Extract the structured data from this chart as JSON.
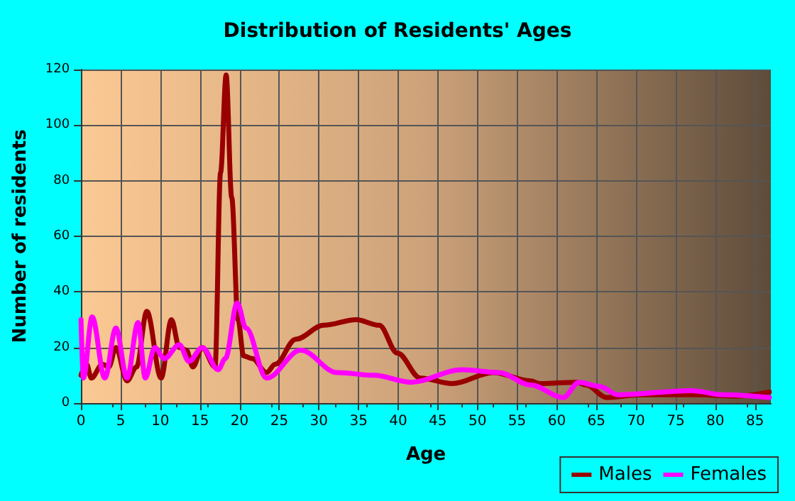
{
  "chart_data": {
    "type": "line",
    "title": "Distribution of Residents' Ages",
    "xlabel": "Age",
    "ylabel": "Number of residents",
    "xlim": [
      0,
      87
    ],
    "xticks": [
      0,
      5,
      10,
      15,
      20,
      25,
      30,
      35,
      40,
      45,
      50,
      55,
      60,
      65,
      70,
      75,
      80,
      85
    ],
    "ylim": [
      0,
      120
    ],
    "yticks": [
      0,
      20,
      40,
      60,
      80,
      100,
      120
    ],
    "grid": true,
    "legend": "bottom right",
    "series": [
      {
        "name": "Males",
        "color": "#990000",
        "x": [
          0,
          0.7,
          1.3,
          2.7,
          3.5,
          4.4,
          5.8,
          7,
          8.3,
          10.1,
          11.4,
          12.4,
          13.3,
          14.1,
          15.3,
          16.9,
          17.6,
          18.3,
          19,
          19.8,
          20.5,
          21.6,
          23.4,
          24.5,
          27.1,
          30.6,
          34.7,
          37.6,
          39.9,
          42.8,
          46.8,
          52,
          56.7,
          57.9,
          62.5,
          63.7,
          66.3,
          70.6,
          77.6,
          82.8,
          86.8
        ],
        "values": [
          10,
          14,
          9,
          14,
          13,
          20,
          8,
          13,
          33,
          9,
          30,
          20,
          19,
          13,
          20,
          13,
          83,
          118,
          74,
          30,
          17,
          16,
          11,
          14,
          23,
          28,
          30,
          28,
          18,
          9,
          7,
          11,
          8,
          7,
          7.5,
          6.5,
          2,
          3,
          3,
          2.5,
          4
        ]
      },
      {
        "name": "Females",
        "color": "#ff00ff",
        "x": [
          0,
          0.3,
          1.4,
          3,
          4.4,
          5.8,
          7.2,
          8.1,
          9.3,
          10.5,
          12.4,
          13.6,
          15.3,
          17.3,
          18.2,
          19.7,
          20.8,
          23.4,
          27.7,
          32.3,
          36.9,
          41.6,
          48,
          52.7,
          56.7,
          60.8,
          62.8,
          65.4,
          67.7,
          77,
          81,
          86.8
        ],
        "values": [
          30,
          9,
          31,
          9,
          27,
          9,
          29,
          9,
          20,
          16,
          21,
          15,
          20,
          12,
          16,
          36,
          27,
          9,
          19,
          11,
          10,
          7.5,
          12,
          11,
          6.5,
          2,
          7.5,
          6,
          3,
          4.5,
          3,
          2
        ]
      }
    ]
  }
}
